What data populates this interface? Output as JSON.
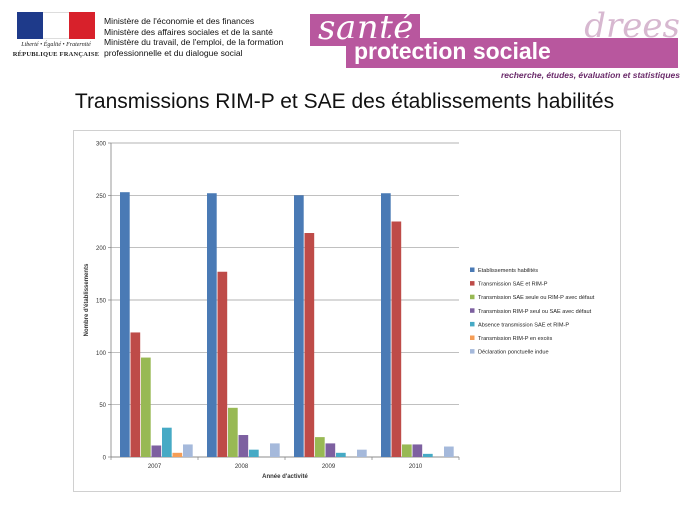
{
  "header": {
    "logo_motto": "Liberté • Égalité • Fraternité",
    "logo_republic": "RÉPUBLIQUE FRANÇAISE",
    "ministries": [
      "Ministère de l'économie et des finances",
      "Ministère des affaires sociales et de la santé",
      "Ministère du travail, de l'emploi, de la formation",
      "professionnelle et du dialogue social"
    ],
    "brand_sante": "santé",
    "brand_protection": "protection sociale",
    "brand_drees": "drees",
    "brand_tagline": "recherche, études, évaluation et statistiques"
  },
  "slide": {
    "title": "Transmissions RIM-P et SAE des établissements habilités"
  },
  "chart_data": {
    "type": "bar",
    "title": "",
    "xlabel": "Année d'activité",
    "ylabel": "Nombre d'établissements",
    "ylim": [
      0,
      300
    ],
    "yticks": [
      0,
      50,
      100,
      150,
      200,
      250,
      300
    ],
    "grid": true,
    "legend_position": "right",
    "categories": [
      "2007",
      "2008",
      "2009",
      "2010"
    ],
    "series": [
      {
        "name": "Etablissements habilités",
        "color": "#4a7ab5",
        "values": [
          253,
          252,
          250,
          252
        ]
      },
      {
        "name": "Transmission SAE et RIM-P",
        "color": "#be4b48",
        "values": [
          119,
          177,
          214,
          225
        ]
      },
      {
        "name": "Transmission SAE seule ou RIM-P avec défaut",
        "color": "#98b954",
        "values": [
          95,
          47,
          19,
          12
        ]
      },
      {
        "name": "Transmission RIM-P seul ou SAE avec défaut",
        "color": "#7d60a0",
        "values": [
          11,
          21,
          13,
          12
        ]
      },
      {
        "name": "Absence transmission SAE et RIM-P",
        "color": "#46aac5",
        "values": [
          28,
          7,
          4,
          3
        ]
      },
      {
        "name": "Transmission RIM-P en excès",
        "color": "#f59d56",
        "values": [
          4,
          0,
          0,
          0
        ]
      },
      {
        "name": "Déclaration ponctuelle indue",
        "color": "#a5b9db",
        "values": [
          12,
          13,
          7,
          10
        ]
      }
    ]
  }
}
